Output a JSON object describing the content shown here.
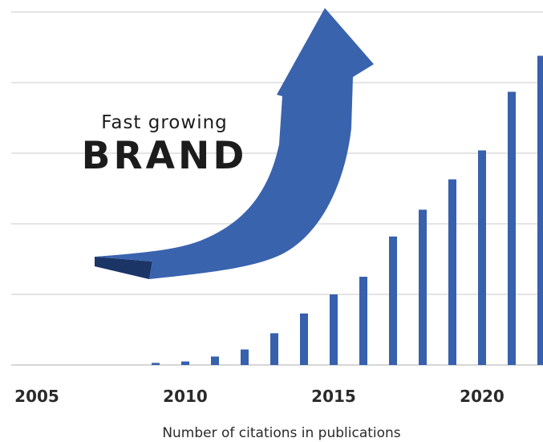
{
  "headline": {
    "line1": "Fast growing",
    "line2": "BRAND"
  },
  "colors": {
    "bar": "#3760ad",
    "arrow": "#3a63ae",
    "arrow_shadow": "#1b3566",
    "grid": "#c8c8c8",
    "text": "#2a2a2a"
  },
  "chart_data": {
    "type": "bar",
    "title": "",
    "xlabel": "Number of citations in publications",
    "ylabel": "",
    "x_tick_labels": [
      "2005",
      "2010",
      "2015",
      "2020"
    ],
    "categories": [
      "2005",
      "2006",
      "2007",
      "2008",
      "2009",
      "2010",
      "2011",
      "2012",
      "2013",
      "2014",
      "2015",
      "2016",
      "2017",
      "2018",
      "2019",
      "2020",
      "2021",
      "2022"
    ],
    "values": [
      0,
      0,
      0,
      0,
      0.03,
      0.05,
      0.12,
      0.22,
      0.45,
      0.73,
      1.0,
      1.25,
      1.82,
      2.2,
      2.63,
      3.04,
      3.87,
      4.38
    ],
    "ylim": [
      0,
      5
    ],
    "y_gridlines": [
      0,
      1,
      2,
      3,
      4,
      5
    ],
    "grid": true,
    "y_tick_labels_shown": false,
    "legend": "none"
  }
}
